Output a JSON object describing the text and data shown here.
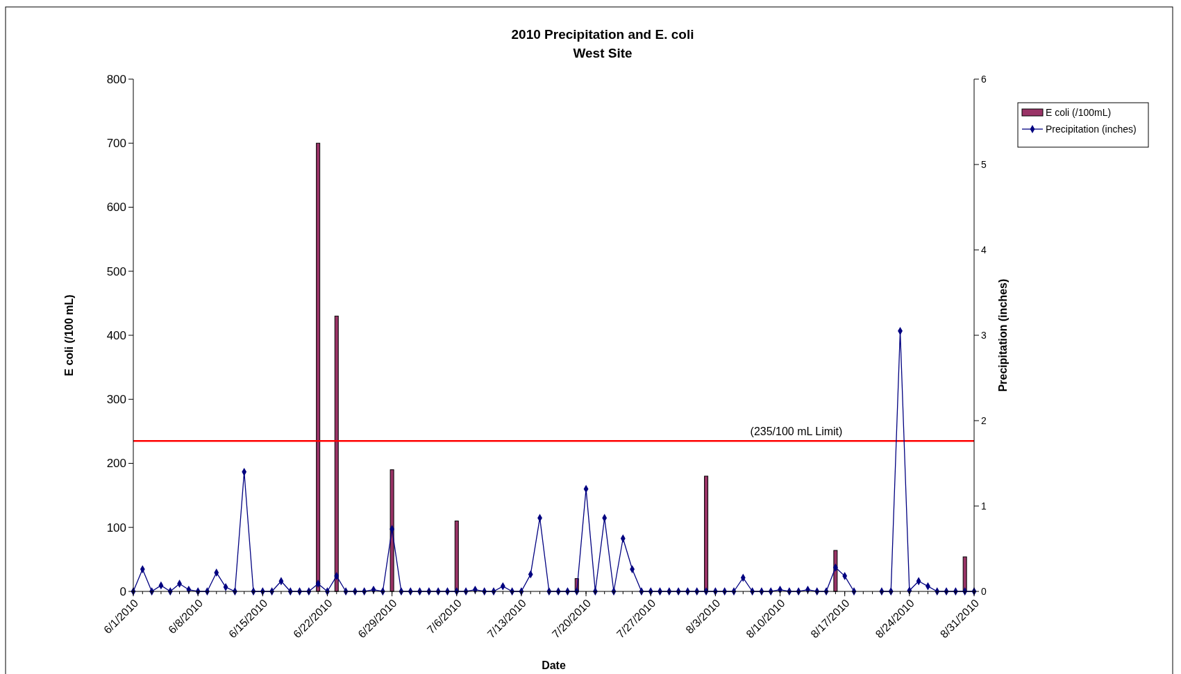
{
  "chart_data": {
    "type": "bar",
    "title": "2010 Precipitation and E. coli",
    "subtitle": "West Site",
    "xlabel": "Date",
    "ylabel": "E coli (/100 mL)",
    "y2label": "Precipitation (inches)",
    "x": [
      "2010-06-01",
      "2010-06-02",
      "2010-06-03",
      "2010-06-04",
      "2010-06-05",
      "2010-06-06",
      "2010-06-07",
      "2010-06-08",
      "2010-06-09",
      "2010-06-10",
      "2010-06-11",
      "2010-06-12",
      "2010-06-13",
      "2010-06-14",
      "2010-06-15",
      "2010-06-16",
      "2010-06-17",
      "2010-06-18",
      "2010-06-19",
      "2010-06-20",
      "2010-06-21",
      "2010-06-22",
      "2010-06-23",
      "2010-06-24",
      "2010-06-25",
      "2010-06-26",
      "2010-06-27",
      "2010-06-28",
      "2010-06-29",
      "2010-06-30",
      "2010-07-01",
      "2010-07-02",
      "2010-07-03",
      "2010-07-04",
      "2010-07-05",
      "2010-07-06",
      "2010-07-07",
      "2010-07-08",
      "2010-07-09",
      "2010-07-10",
      "2010-07-11",
      "2010-07-12",
      "2010-07-13",
      "2010-07-14",
      "2010-07-15",
      "2010-07-16",
      "2010-07-17",
      "2010-07-18",
      "2010-07-19",
      "2010-07-20",
      "2010-07-21",
      "2010-07-22",
      "2010-07-23",
      "2010-07-24",
      "2010-07-25",
      "2010-07-26",
      "2010-07-27",
      "2010-07-28",
      "2010-07-29",
      "2010-07-30",
      "2010-07-31",
      "2010-08-01",
      "2010-08-02",
      "2010-08-03",
      "2010-08-04",
      "2010-08-05",
      "2010-08-06",
      "2010-08-07",
      "2010-08-08",
      "2010-08-09",
      "2010-08-10",
      "2010-08-11",
      "2010-08-12",
      "2010-08-13",
      "2010-08-14",
      "2010-08-15",
      "2010-08-16",
      "2010-08-17",
      "2010-08-18",
      "2010-08-19",
      "2010-08-20",
      "2010-08-21",
      "2010-08-22",
      "2010-08-23",
      "2010-08-24",
      "2010-08-25",
      "2010-08-26",
      "2010-08-27",
      "2010-08-28",
      "2010-08-29",
      "2010-08-30",
      "2010-08-31"
    ],
    "series": [
      {
        "name": "E coli (/100mL)",
        "color": "#993366",
        "values": [
          null,
          null,
          null,
          null,
          null,
          null,
          null,
          null,
          null,
          null,
          null,
          null,
          null,
          null,
          null,
          null,
          null,
          null,
          null,
          null,
          700,
          null,
          430,
          null,
          null,
          null,
          null,
          null,
          190,
          null,
          null,
          null,
          null,
          null,
          null,
          110,
          null,
          null,
          null,
          null,
          null,
          null,
          null,
          null,
          null,
          null,
          null,
          null,
          20,
          null,
          null,
          null,
          null,
          null,
          null,
          null,
          null,
          null,
          null,
          null,
          null,
          null,
          180,
          null,
          null,
          null,
          null,
          null,
          null,
          null,
          null,
          null,
          null,
          null,
          null,
          null,
          64,
          null,
          null,
          null,
          null,
          null,
          null,
          null,
          null,
          null,
          null,
          null,
          null,
          null,
          54,
          null
        ]
      },
      {
        "name": "Precipitation (inches)",
        "type": "line",
        "axis": "y2",
        "color": "#000080",
        "marker": "diamond",
        "values": [
          0,
          0.26,
          0,
          0.07,
          0,
          0.09,
          0.02,
          0,
          0,
          0.22,
          0.05,
          0,
          1.4,
          0,
          0,
          0,
          0.12,
          0,
          0,
          0,
          0.09,
          0,
          0.18,
          0,
          0,
          0,
          0.02,
          0,
          0.73,
          0,
          0,
          0,
          0,
          0,
          0,
          0,
          0,
          0.02,
          0,
          0,
          0.06,
          0,
          0,
          0.2,
          0.86,
          0,
          0,
          0,
          0,
          1.2,
          0,
          0.86,
          0,
          0.62,
          0.26,
          0,
          0,
          0,
          0,
          0,
          0,
          0,
          0,
          0,
          0,
          0,
          0.16,
          0,
          0,
          0,
          0.02,
          0,
          0,
          0.02,
          0,
          0,
          0.28,
          0.18,
          0,
          null,
          null,
          0,
          0,
          3.05,
          0.01,
          0.12,
          0.06,
          0,
          0,
          0,
          0,
          0
        ]
      }
    ],
    "xlim": [
      "2010-06-01",
      "2010-08-31"
    ],
    "xticks": [
      {
        "value": "2010-06-01",
        "label": "6/1/2010"
      },
      {
        "value": "2010-06-08",
        "label": "6/8/2010"
      },
      {
        "value": "2010-06-15",
        "label": "6/15/2010"
      },
      {
        "value": "2010-06-22",
        "label": "6/22/2010"
      },
      {
        "value": "2010-06-29",
        "label": "6/29/2010"
      },
      {
        "value": "2010-07-06",
        "label": "7/6/2010"
      },
      {
        "value": "2010-07-13",
        "label": "7/13/2010"
      },
      {
        "value": "2010-07-20",
        "label": "7/20/2010"
      },
      {
        "value": "2010-07-27",
        "label": "7/27/2010"
      },
      {
        "value": "2010-08-03",
        "label": "8/3/2010"
      },
      {
        "value": "2010-08-10",
        "label": "8/10/2010"
      },
      {
        "value": "2010-08-17",
        "label": "8/17/2010"
      },
      {
        "value": "2010-08-24",
        "label": "8/24/2010"
      },
      {
        "value": "2010-08-31",
        "label": "8/31/2010"
      }
    ],
    "ylim": [
      0,
      800
    ],
    "yticks": [
      0,
      100,
      200,
      300,
      400,
      500,
      600,
      700,
      800
    ],
    "y2lim": [
      0,
      6
    ],
    "y2ticks": [
      0,
      1,
      2,
      3,
      4,
      5,
      6
    ],
    "ref_lines": [
      {
        "axis": "y",
        "value": 235,
        "label": "(235/100 mL Limit)",
        "color": "#ff0000"
      }
    ],
    "legend": "top right",
    "grid": false
  }
}
